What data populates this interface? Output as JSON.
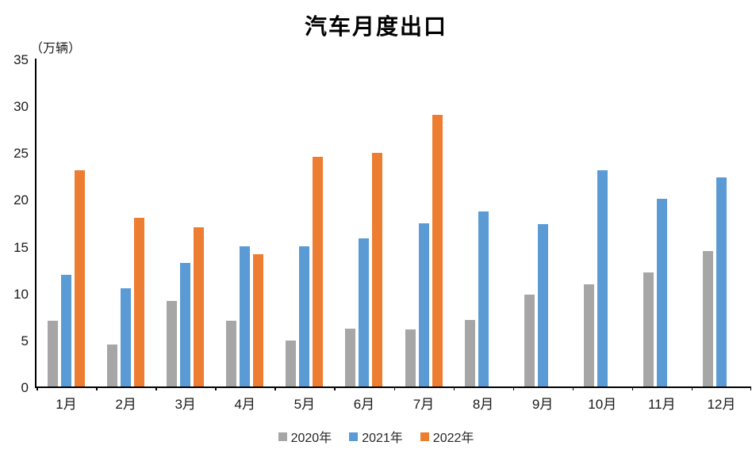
{
  "chart_data": {
    "type": "bar",
    "title": "汽车月度出口",
    "unit_label": "（万辆）",
    "categories": [
      "1月",
      "2月",
      "3月",
      "4月",
      "5月",
      "6月",
      "7月",
      "8月",
      "9月",
      "10月",
      "11月",
      "12月"
    ],
    "series": [
      {
        "name": "2020年",
        "color": "#A6A6A6",
        "values": [
          7.0,
          4.5,
          9.1,
          7.0,
          4.9,
          6.2,
          6.1,
          7.1,
          9.8,
          10.9,
          12.2,
          14.5
        ]
      },
      {
        "name": "2021年",
        "color": "#5B9BD5",
        "values": [
          11.9,
          10.5,
          13.2,
          15.0,
          15.0,
          15.8,
          17.4,
          18.7,
          17.3,
          23.1,
          20.0,
          22.3
        ]
      },
      {
        "name": "2022年",
        "color": "#ED7D31",
        "values": [
          23.1,
          18.0,
          17.0,
          14.1,
          24.5,
          24.9,
          29.0,
          null,
          null,
          null,
          null,
          null
        ]
      }
    ],
    "ylim": [
      0,
      35
    ],
    "yticks": [
      0,
      5,
      10,
      15,
      20,
      25,
      30,
      35
    ],
    "grid": false,
    "legend_position": "bottom",
    "axis_color": "#000000",
    "text_color": "#1a1a1a"
  }
}
